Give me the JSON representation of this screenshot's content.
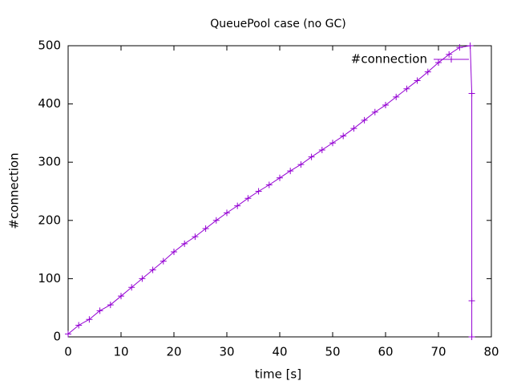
{
  "chart_data": {
    "type": "line",
    "title": "QueuePool case (no GC)",
    "xlabel": "time [s]",
    "ylabel": "#connection",
    "x": [
      0,
      2,
      4,
      6,
      8,
      10,
      12,
      14,
      16,
      18,
      20,
      22,
      24,
      26,
      28,
      30,
      32,
      34,
      36,
      38,
      40,
      42,
      44,
      46,
      48,
      50,
      52,
      54,
      56,
      58,
      60,
      62,
      64,
      66,
      68,
      70,
      72,
      74,
      76,
      76.3,
      76.3,
      76.3
    ],
    "series": [
      {
        "name": "#connection",
        "color": "#9400d3",
        "values": [
          5,
          20,
          30,
          45,
          55,
          70,
          85,
          100,
          115,
          130,
          146,
          160,
          172,
          186,
          200,
          213,
          225,
          238,
          250,
          261,
          273,
          285,
          296,
          309,
          321,
          333,
          345,
          358,
          372,
          386,
          398,
          412,
          426,
          440,
          455,
          471,
          485,
          497,
          500,
          418,
          62,
          0
        ]
      }
    ],
    "xlim": [
      0,
      80
    ],
    "xticks": [
      0,
      10,
      20,
      30,
      40,
      50,
      60,
      70,
      80
    ],
    "ylim": [
      0,
      500
    ],
    "yticks": [
      0,
      100,
      200,
      300,
      400,
      500
    ],
    "legend": "top-right",
    "grid": false
  }
}
